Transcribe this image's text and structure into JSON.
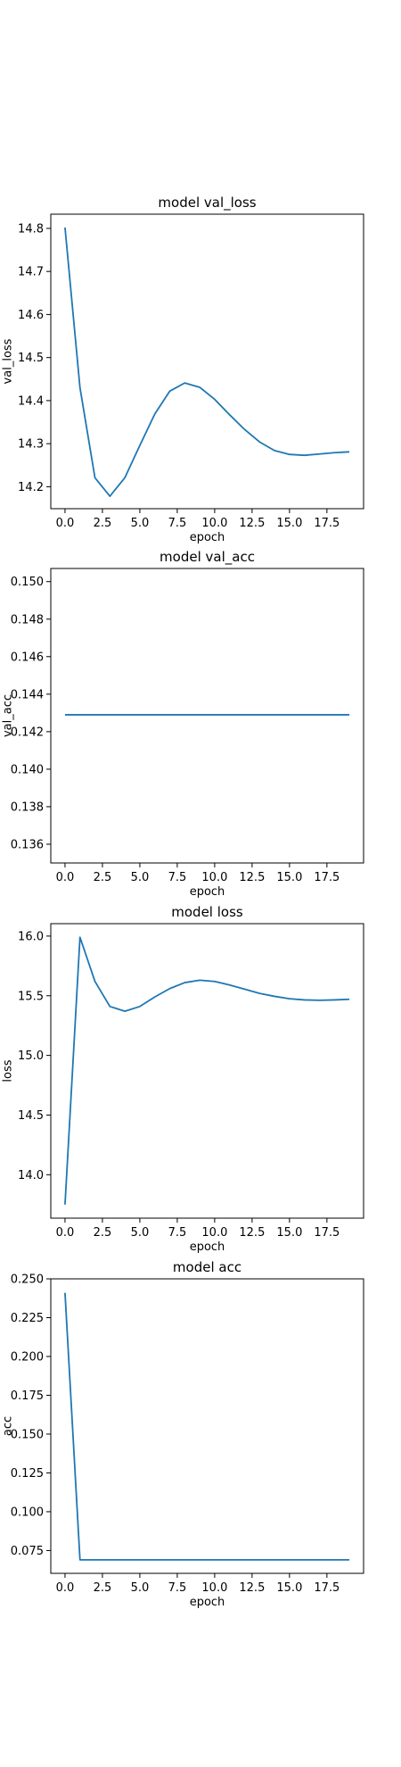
{
  "chart_data": [
    {
      "type": "line",
      "title": "model val_loss",
      "xlabel": "epoch",
      "ylabel": "val_loss",
      "xlim": [
        -0.95,
        19.95
      ],
      "ylim": [
        14.149,
        14.833
      ],
      "xticks": [
        0.0,
        2.5,
        5.0,
        7.5,
        10.0,
        12.5,
        15.0,
        17.5
      ],
      "xtick_labels": [
        "0.0",
        "2.5",
        "5.0",
        "7.5",
        "10.0",
        "12.5",
        "15.0",
        "17.5"
      ],
      "yticks": [
        14.2,
        14.3,
        14.4,
        14.5,
        14.6,
        14.7,
        14.8
      ],
      "ytick_labels": [
        "14.2",
        "14.3",
        "14.4",
        "14.5",
        "14.6",
        "14.7",
        "14.8"
      ],
      "grid": false,
      "color": "#1f77b4",
      "x": [
        0,
        1,
        2,
        3,
        4,
        5,
        6,
        7,
        8,
        9,
        10,
        11,
        12,
        13,
        14,
        15,
        16,
        17,
        18,
        19
      ],
      "y": [
        14.802,
        14.43,
        14.221,
        14.178,
        14.221,
        14.296,
        14.369,
        14.422,
        14.441,
        14.431,
        14.403,
        14.367,
        14.333,
        14.304,
        14.284,
        14.275,
        14.273,
        14.276,
        14.279,
        14.281
      ]
    },
    {
      "type": "line",
      "title": "model val_acc",
      "xlabel": "epoch",
      "ylabel": "val_acc",
      "xlim": [
        -0.95,
        19.95
      ],
      "ylim": [
        0.135,
        0.1507
      ],
      "xticks": [
        0.0,
        2.5,
        5.0,
        7.5,
        10.0,
        12.5,
        15.0,
        17.5
      ],
      "xtick_labels": [
        "0.0",
        "2.5",
        "5.0",
        "7.5",
        "10.0",
        "12.5",
        "15.0",
        "17.5"
      ],
      "yticks": [
        0.136,
        0.138,
        0.14,
        0.142,
        0.144,
        0.146,
        0.148,
        0.15
      ],
      "ytick_labels": [
        "0.136",
        "0.138",
        "0.140",
        "0.142",
        "0.144",
        "0.146",
        "0.148",
        "0.150"
      ],
      "grid": false,
      "color": "#1f77b4",
      "x": [
        0,
        1,
        2,
        3,
        4,
        5,
        6,
        7,
        8,
        9,
        10,
        11,
        12,
        13,
        14,
        15,
        16,
        17,
        18,
        19
      ],
      "y": [
        0.1429,
        0.1429,
        0.1429,
        0.1429,
        0.1429,
        0.1429,
        0.1429,
        0.1429,
        0.1429,
        0.1429,
        0.1429,
        0.1429,
        0.1429,
        0.1429,
        0.1429,
        0.1429,
        0.1429,
        0.1429,
        0.1429,
        0.1429
      ]
    },
    {
      "type": "line",
      "title": "model loss",
      "xlabel": "epoch",
      "ylabel": "loss",
      "xlim": [
        -0.95,
        19.95
      ],
      "ylim": [
        13.636,
        16.104
      ],
      "xticks": [
        0.0,
        2.5,
        5.0,
        7.5,
        10.0,
        12.5,
        15.0,
        17.5
      ],
      "xtick_labels": [
        "0.0",
        "2.5",
        "5.0",
        "7.5",
        "10.0",
        "12.5",
        "15.0",
        "17.5"
      ],
      "yticks": [
        14.0,
        14.5,
        15.0,
        15.5,
        16.0
      ],
      "ytick_labels": [
        "14.0",
        "14.5",
        "15.0",
        "15.5",
        "16.0"
      ],
      "grid": false,
      "color": "#1f77b4",
      "x": [
        0,
        1,
        2,
        3,
        4,
        5,
        6,
        7,
        8,
        9,
        10,
        11,
        12,
        13,
        14,
        15,
        16,
        17,
        18,
        19
      ],
      "y": [
        13.75,
        15.99,
        15.62,
        15.41,
        15.37,
        15.41,
        15.49,
        15.56,
        15.61,
        15.63,
        15.62,
        15.59,
        15.555,
        15.52,
        15.495,
        15.475,
        15.465,
        15.462,
        15.465,
        15.47
      ]
    },
    {
      "type": "line",
      "title": "model acc",
      "xlabel": "epoch",
      "ylabel": "acc",
      "xlim": [
        -0.95,
        19.95
      ],
      "ylim": [
        0.0603,
        0.25
      ],
      "xticks": [
        0.0,
        2.5,
        5.0,
        7.5,
        10.0,
        12.5,
        15.0,
        17.5
      ],
      "xtick_labels": [
        "0.0",
        "2.5",
        "5.0",
        "7.5",
        "10.0",
        "12.5",
        "15.0",
        "17.5"
      ],
      "yticks": [
        0.075,
        0.1,
        0.125,
        0.15,
        0.175,
        0.2,
        0.225,
        0.25
      ],
      "ytick_labels": [
        "0.075",
        "0.100",
        "0.125",
        "0.150",
        "0.175",
        "0.200",
        "0.225",
        "0.250"
      ],
      "grid": false,
      "color": "#1f77b4",
      "x": [
        0,
        1,
        2,
        3,
        4,
        5,
        6,
        7,
        8,
        9,
        10,
        11,
        12,
        13,
        14,
        15,
        16,
        17,
        18,
        19
      ],
      "y": [
        0.241,
        0.069,
        0.069,
        0.069,
        0.069,
        0.069,
        0.069,
        0.069,
        0.069,
        0.069,
        0.069,
        0.069,
        0.069,
        0.069,
        0.069,
        0.069,
        0.069,
        0.069,
        0.069,
        0.069
      ]
    }
  ]
}
